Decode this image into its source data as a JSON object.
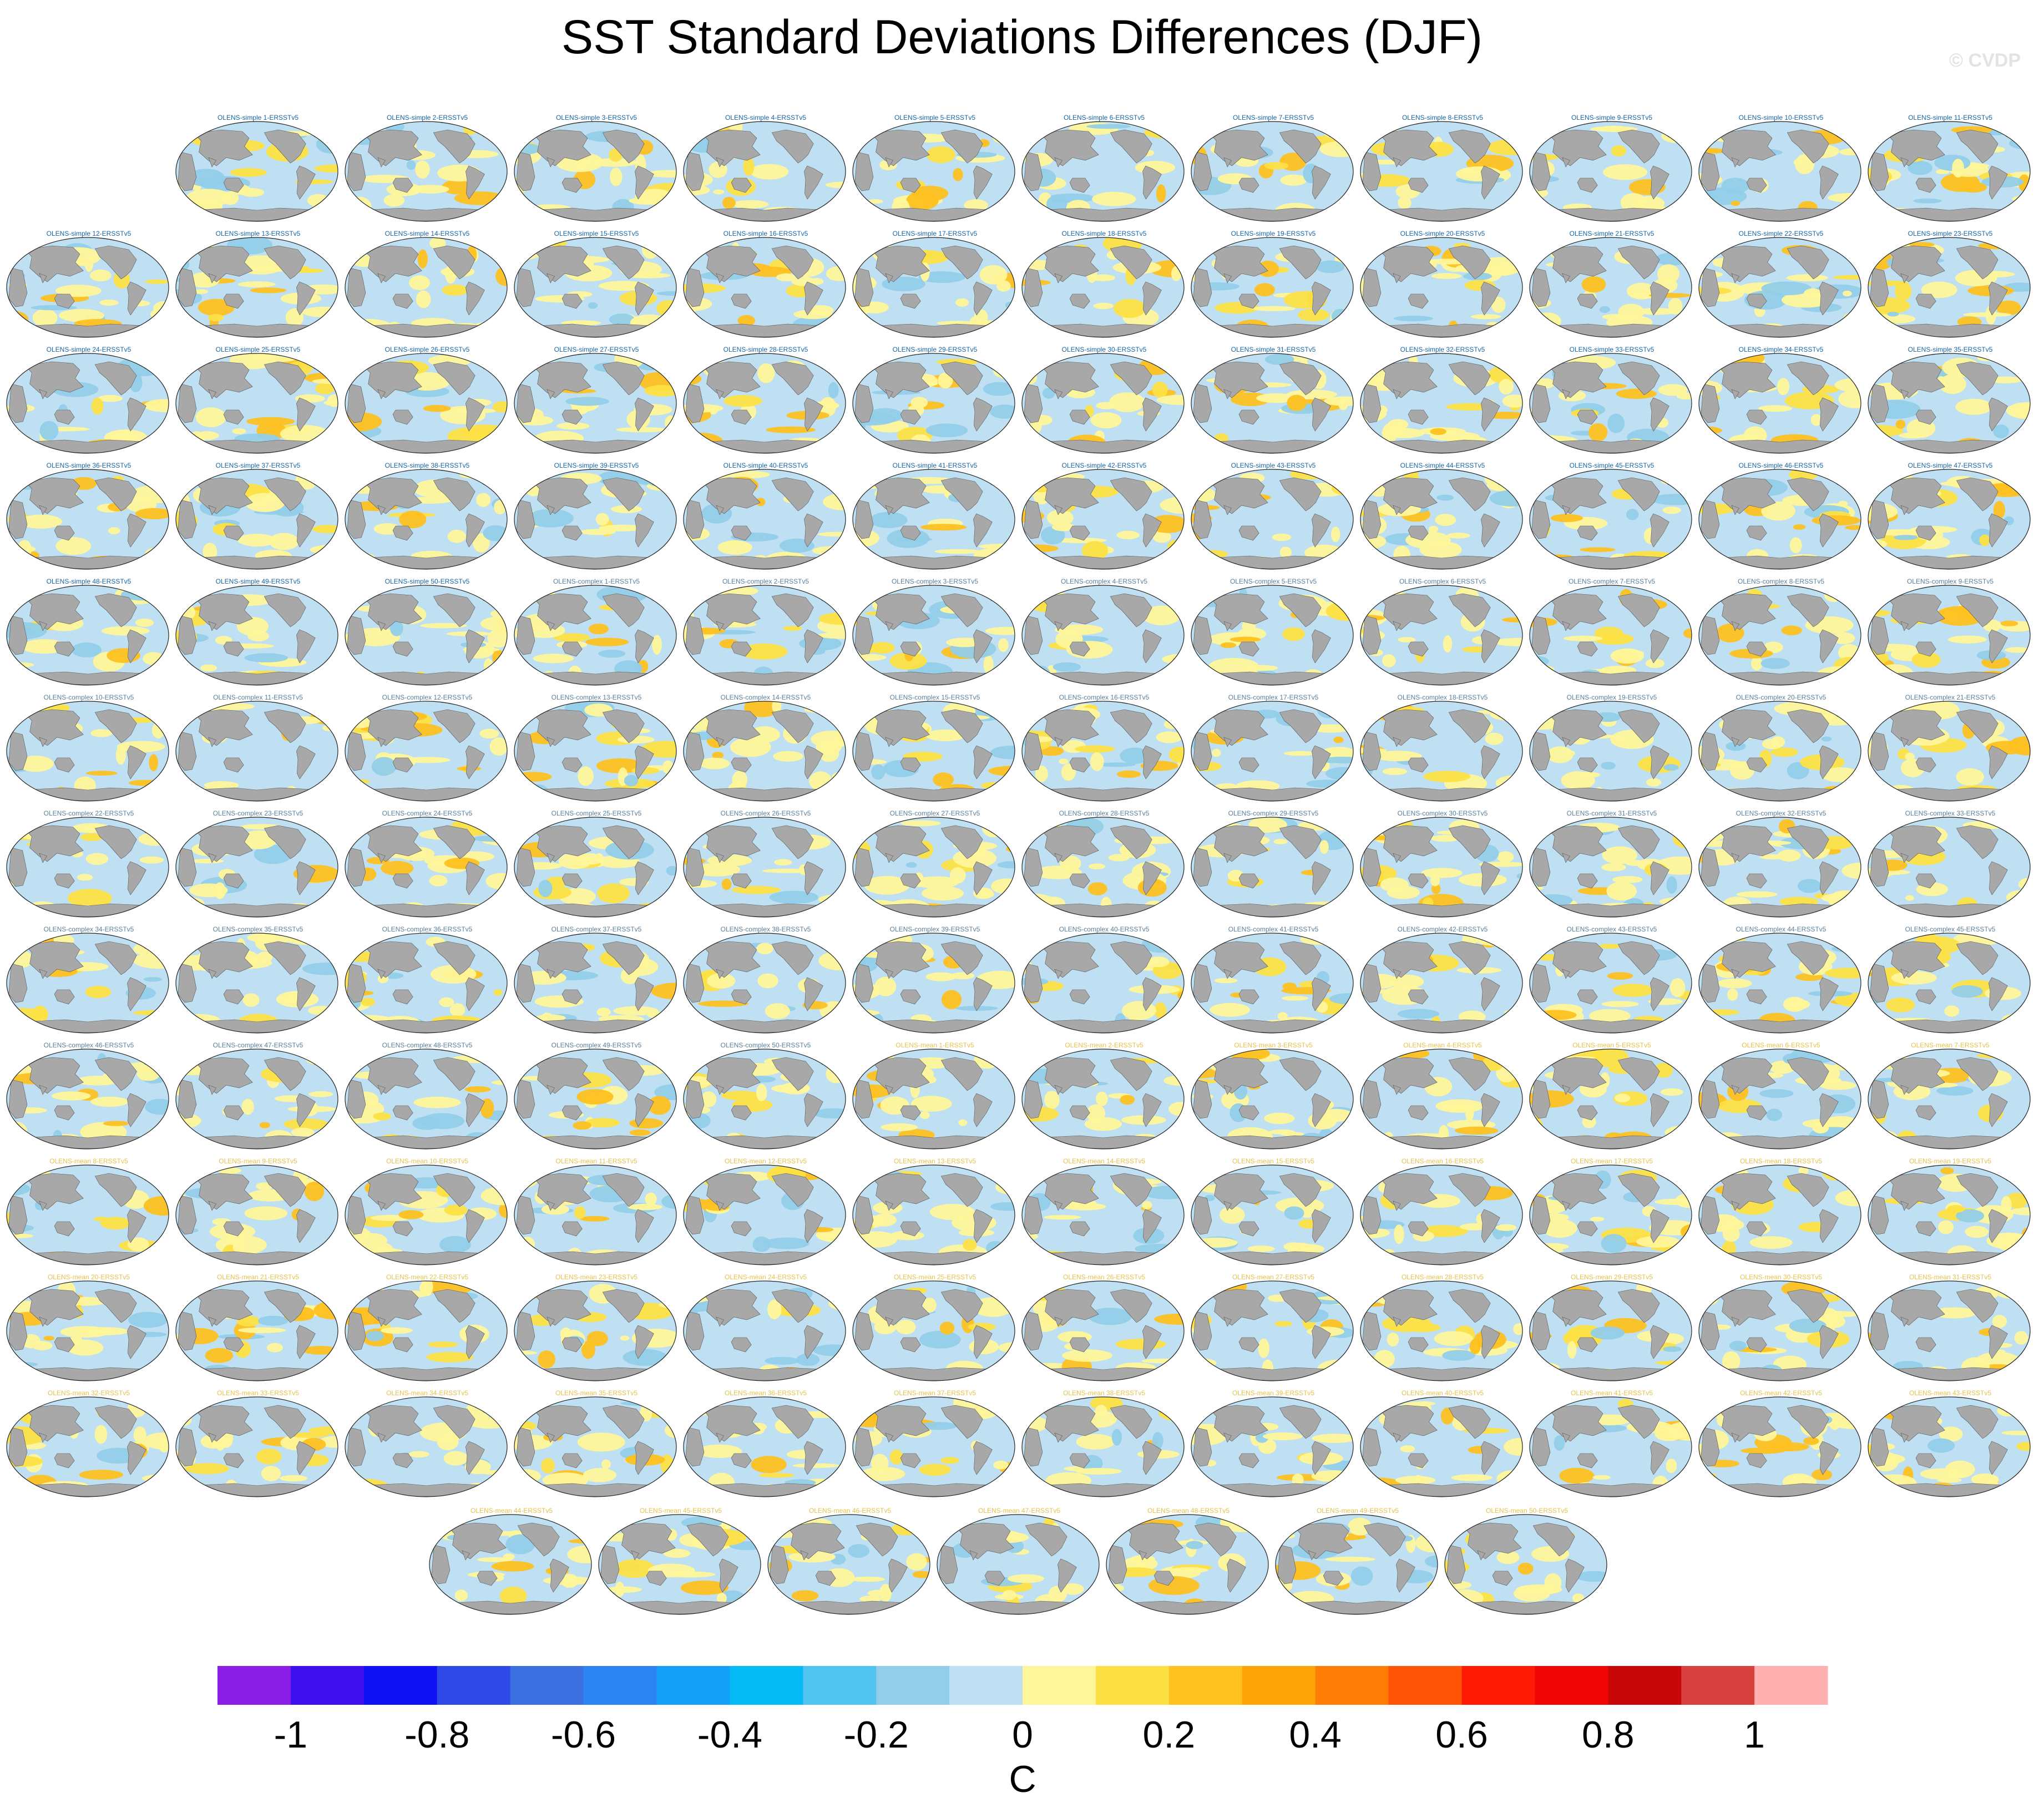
{
  "title": "SST Standard Deviations Differences (DJF)",
  "credit": "© CVDP",
  "colors": {
    "land": "#a8a8a8",
    "ocean_base": "#bfe0f2",
    "simple_label": "#1565a6",
    "complex_label": "#5a7f9a",
    "mean_label": "#e6c24a"
  },
  "panel_groups": [
    {
      "prefix": "OLENS-simple",
      "suffix": "-ERSSTv5",
      "count": 50,
      "label_color_key": "simple_label"
    },
    {
      "prefix": "OLENS-complex",
      "suffix": "-ERSSTv5",
      "count": 50,
      "label_color_key": "complex_label"
    },
    {
      "prefix": "OLENS-mean",
      "suffix": "-ERSSTv5",
      "count": 50,
      "label_color_key": "mean_label"
    }
  ],
  "chart_data": {
    "type": "heatmap",
    "title": "SST Standard Deviations Differences (DJF)",
    "panel_count": 150,
    "colorbar": {
      "unit": "C",
      "levels": [
        -1.1,
        -1,
        -0.9,
        -0.8,
        -0.7,
        -0.6,
        -0.5,
        -0.4,
        -0.3,
        -0.2,
        -0.1,
        0,
        0.1,
        0.2,
        0.3,
        0.4,
        0.5,
        0.6,
        0.7,
        0.8,
        0.9,
        1,
        1.1
      ],
      "colors": [
        "#8a1de6",
        "#3f0ff0",
        "#1010f5",
        "#2f49e6",
        "#3a70e0",
        "#2c84f0",
        "#15a0f7",
        "#05baf5",
        "#52c4f2",
        "#92cde9",
        "#bfe0f2",
        "#fff59a",
        "#fde044",
        "#fec120",
        "#fda406",
        "#ff7d05",
        "#ff5405",
        "#ff1a05",
        "#ef0505",
        "#c80808",
        "#d94040",
        "#ffb0b0"
      ],
      "tick_labels": [
        "-1",
        "-0.8",
        "-0.6",
        "-0.4",
        "-0.2",
        "0",
        "0.2",
        "0.4",
        "0.6",
        "0.8",
        "1"
      ],
      "tick_values": [
        -1,
        -0.8,
        -0.6,
        -0.4,
        -0.2,
        0,
        0.2,
        0.4,
        0.6,
        0.8,
        1
      ]
    }
  }
}
